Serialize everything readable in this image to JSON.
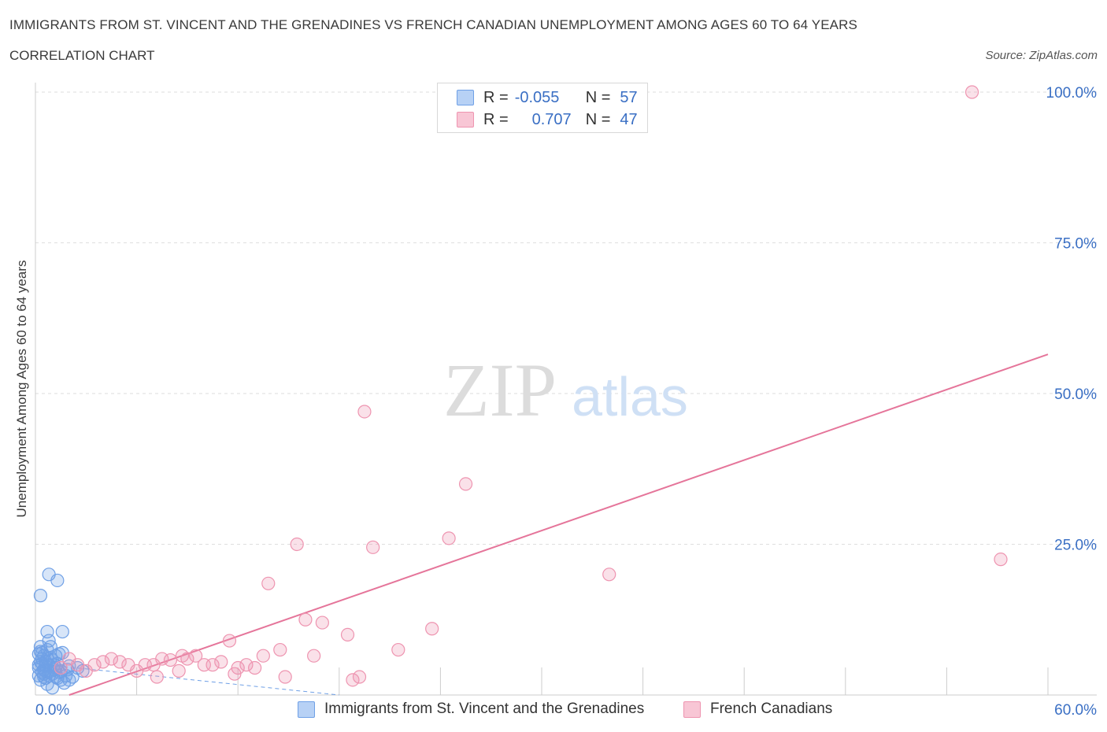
{
  "title": "IMMIGRANTS FROM ST. VINCENT AND THE GRENADINES VS FRENCH CANADIAN UNEMPLOYMENT AMONG AGES 60 TO 64 YEARS",
  "subtitle": "CORRELATION CHART",
  "source": "Source: ZipAtlas.com",
  "watermark": {
    "zip": "ZIP",
    "atlas": "atlas"
  },
  "legend": [
    {
      "r_label": "R =",
      "r_value": "-0.055",
      "n_label": "N =",
      "n_value": "57",
      "fill": "#b7d1f5",
      "stroke": "#6fa0e6"
    },
    {
      "r_label": "R =",
      "r_value": "0.707",
      "n_label": "N =",
      "n_value": "47",
      "fill": "#f8c6d5",
      "stroke": "#ee94b0"
    }
  ],
  "colors": {
    "accent_blue": "#3a6fc4",
    "blue_point": "#6fa0e6",
    "pink_point": "#ee94b0",
    "pink_line": "#e5759a",
    "grid": "#dedede"
  },
  "chart_data": {
    "type": "scatter",
    "xlabel": "",
    "ylabel": "Unemployment Among Ages 60 to 64 years",
    "xlim": [
      0,
      60
    ],
    "ylim": [
      0,
      100
    ],
    "x_tick_labels": [
      "0.0%",
      "60.0%"
    ],
    "y_tick_labels": [
      "100.0%",
      "75.0%",
      "50.0%",
      "25.0%"
    ],
    "y_tick_values": [
      100,
      75,
      50,
      25
    ],
    "grid": true,
    "legend_position": "top-center",
    "series": [
      {
        "name": "Immigrants from St. Vincent and the Grenadines",
        "color": "#6fa0e6",
        "trend": {
          "x": [
            0,
            18
          ],
          "y": [
            5.2,
            0.0
          ],
          "style": "dashed"
        },
        "points": [
          [
            0.2,
            4.5
          ],
          [
            0.3,
            5.5
          ],
          [
            0.4,
            6.0
          ],
          [
            0.5,
            3.5
          ],
          [
            0.6,
            4.8
          ],
          [
            0.7,
            7.5
          ],
          [
            0.8,
            5.0
          ],
          [
            0.3,
            8.0
          ],
          [
            0.5,
            6.5
          ],
          [
            0.9,
            4.0
          ],
          [
            1.0,
            5.8
          ],
          [
            1.2,
            3.0
          ],
          [
            0.4,
            3.8
          ],
          [
            0.6,
            2.8
          ],
          [
            0.8,
            9.0
          ],
          [
            0.7,
            10.5
          ],
          [
            1.4,
            6.8
          ],
          [
            1.6,
            7.0
          ],
          [
            1.1,
            4.2
          ],
          [
            1.3,
            5.2
          ],
          [
            1.5,
            2.5
          ],
          [
            1.8,
            3.2
          ],
          [
            2.0,
            4.8
          ],
          [
            1.7,
            2.0
          ],
          [
            0.3,
            16.5
          ],
          [
            0.8,
            20.0
          ],
          [
            1.3,
            19.0
          ],
          [
            1.6,
            10.5
          ],
          [
            0.2,
            5.0
          ],
          [
            0.5,
            4.2
          ],
          [
            0.9,
            6.2
          ],
          [
            0.4,
            7.0
          ],
          [
            0.6,
            5.5
          ],
          [
            1.0,
            3.5
          ],
          [
            1.2,
            4.5
          ],
          [
            0.3,
            2.5
          ],
          [
            0.7,
            1.8
          ],
          [
            1.0,
            1.2
          ],
          [
            0.2,
            6.8
          ],
          [
            0.5,
            3.0
          ],
          [
            1.1,
            5.0
          ],
          [
            1.4,
            3.8
          ],
          [
            2.2,
            3.0
          ],
          [
            2.5,
            4.5
          ],
          [
            0.9,
            8.0
          ],
          [
            0.6,
            4.0
          ],
          [
            1.3,
            2.8
          ],
          [
            0.4,
            5.2
          ],
          [
            0.8,
            3.2
          ],
          [
            1.5,
            4.0
          ],
          [
            0.2,
            3.2
          ],
          [
            0.3,
            7.2
          ],
          [
            1.9,
            4.2
          ],
          [
            2.8,
            4.0
          ],
          [
            0.7,
            6.0
          ],
          [
            1.2,
            6.5
          ],
          [
            2.0,
            2.5
          ]
        ]
      },
      {
        "name": "French Canadians",
        "color": "#ee94b0",
        "trend": {
          "x": [
            2,
            60
          ],
          "y": [
            0.0,
            56.5
          ],
          "style": "solid"
        },
        "points": [
          [
            55.5,
            100.0
          ],
          [
            19.5,
            47.0
          ],
          [
            25.5,
            35.0
          ],
          [
            15.5,
            25.0
          ],
          [
            20.0,
            24.5
          ],
          [
            24.5,
            26.0
          ],
          [
            57.2,
            22.5
          ],
          [
            34.0,
            20.0
          ],
          [
            13.8,
            18.5
          ],
          [
            16.0,
            12.5
          ],
          [
            17.0,
            12.0
          ],
          [
            18.5,
            10.0
          ],
          [
            23.5,
            11.0
          ],
          [
            11.5,
            9.0
          ],
          [
            21.5,
            7.5
          ],
          [
            14.5,
            7.5
          ],
          [
            13.5,
            6.5
          ],
          [
            16.5,
            6.5
          ],
          [
            2.5,
            5.0
          ],
          [
            3.5,
            5.0
          ],
          [
            4.0,
            5.5
          ],
          [
            4.5,
            6.0
          ],
          [
            5.0,
            5.5
          ],
          [
            5.5,
            5.0
          ],
          [
            6.0,
            4.0
          ],
          [
            6.5,
            5.0
          ],
          [
            7.0,
            5.0
          ],
          [
            7.5,
            6.0
          ],
          [
            8.0,
            5.8
          ],
          [
            8.5,
            4.0
          ],
          [
            9.0,
            6.0
          ],
          [
            9.5,
            6.5
          ],
          [
            10.0,
            5.0
          ],
          [
            10.5,
            5.0
          ],
          [
            11.0,
            5.5
          ],
          [
            12.0,
            4.5
          ],
          [
            12.5,
            5.0
          ],
          [
            13.0,
            4.5
          ],
          [
            14.8,
            3.0
          ],
          [
            18.8,
            2.5
          ],
          [
            19.2,
            3.0
          ],
          [
            1.5,
            4.5
          ],
          [
            2.0,
            6.0
          ],
          [
            3.0,
            4.0
          ],
          [
            8.7,
            6.5
          ],
          [
            11.8,
            3.5
          ],
          [
            7.2,
            3.0
          ]
        ]
      }
    ]
  }
}
